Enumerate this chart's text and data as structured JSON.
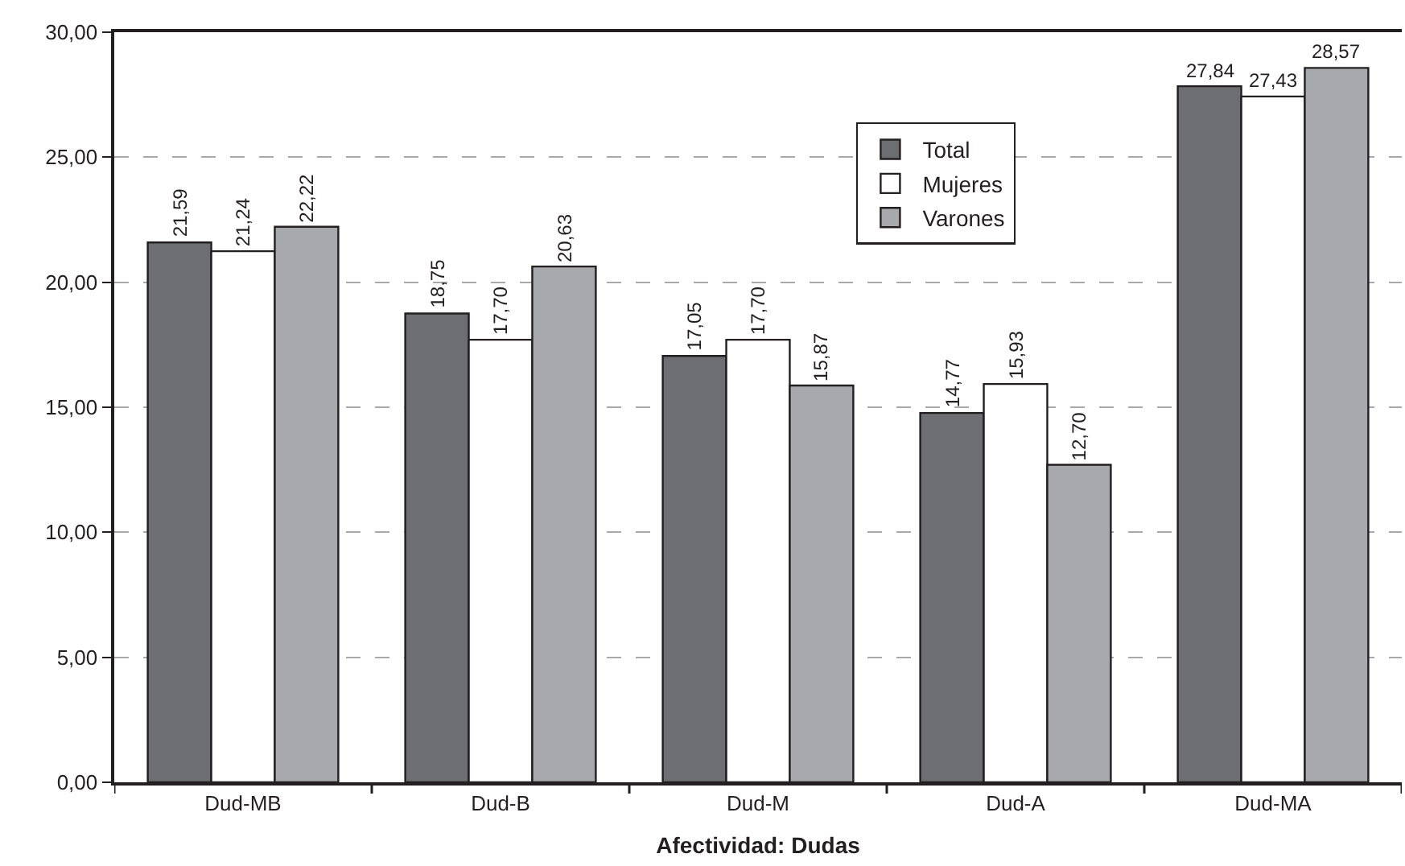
{
  "chart_data": {
    "type": "bar",
    "xlabel": "Afectividad: Dudas",
    "categories": [
      "Dud-MB",
      "Dud-B",
      "Dud-M",
      "Dud-A",
      "Dud-MA"
    ],
    "series": [
      {
        "name": "Total",
        "color": "#6d6e71",
        "values": [
          21.59,
          18.75,
          17.05,
          14.77,
          27.84
        ],
        "value_labels": [
          "21,59",
          "18,75",
          "17,05",
          "14,77",
          "27,84"
        ]
      },
      {
        "name": "Mujeres",
        "color": "#ffffff",
        "values": [
          21.24,
          17.7,
          17.7,
          15.93,
          27.43
        ],
        "value_labels": [
          "21,24",
          "17,70",
          "17,70",
          "15,93",
          "27,43"
        ]
      },
      {
        "name": "Varones",
        "color": "#a7a9ac",
        "values": [
          22.22,
          20.63,
          15.87,
          12.7,
          28.57
        ],
        "value_labels": [
          "22,22",
          "20,63",
          "15,87",
          "12,70",
          "28,57"
        ]
      }
    ],
    "ylim": [
      0,
      30
    ],
    "yticks": [
      {
        "value": 0,
        "label": "0,00"
      },
      {
        "value": 5,
        "label": "5,00"
      },
      {
        "value": 10,
        "label": "10,00"
      },
      {
        "value": 15,
        "label": "15,00"
      },
      {
        "value": 20,
        "label": "20,00"
      },
      {
        "value": 25,
        "label": "25,00"
      },
      {
        "value": 30,
        "label": "30,00"
      }
    ],
    "grid": "y",
    "legend": "top right"
  }
}
